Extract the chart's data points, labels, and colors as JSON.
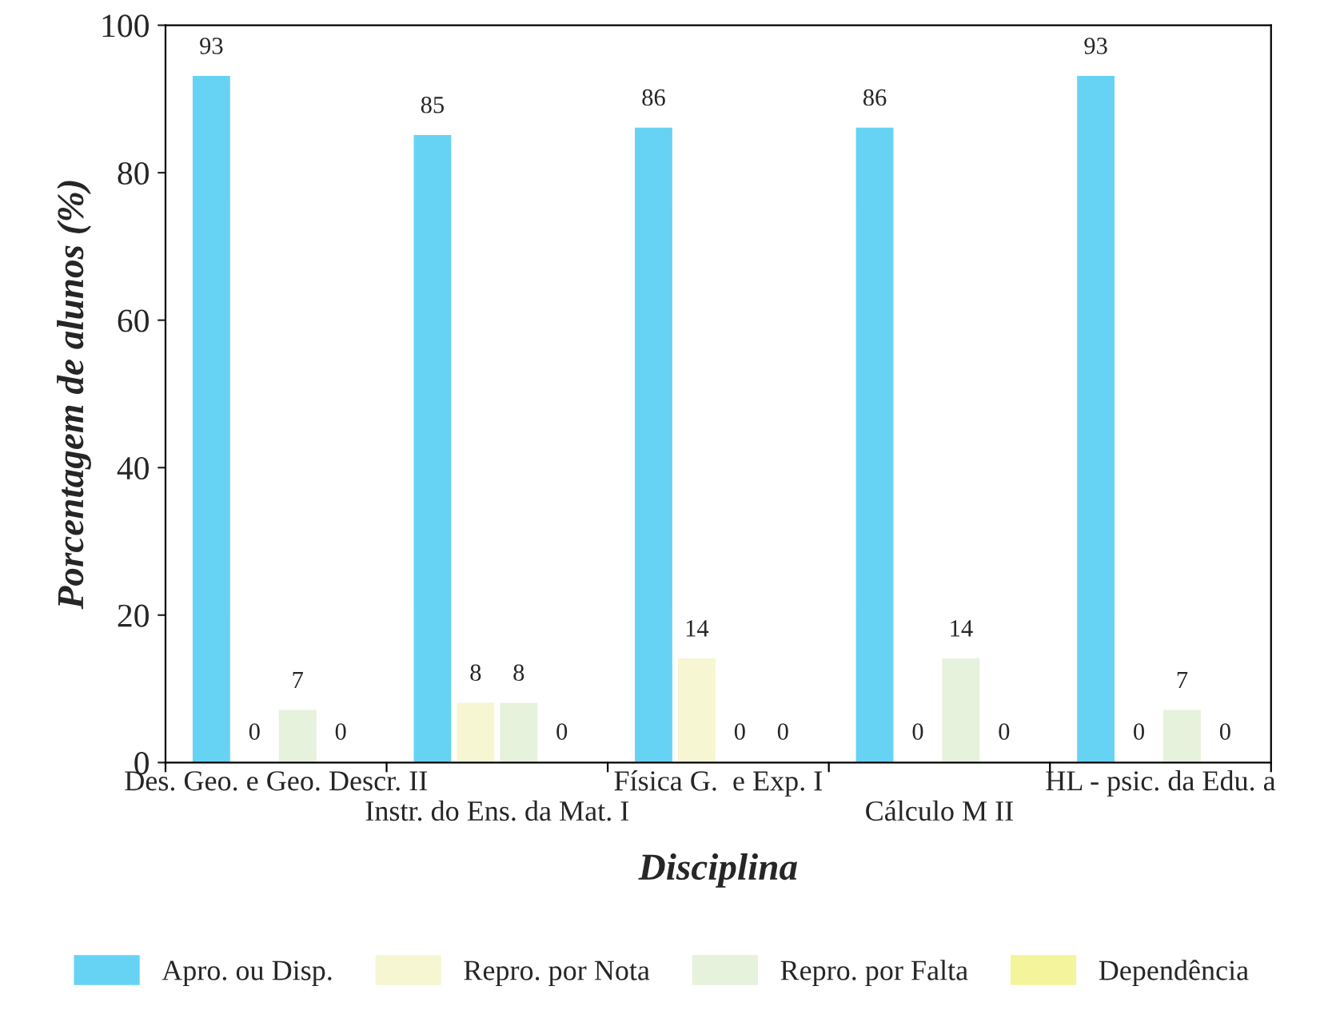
{
  "chart_data": {
    "type": "bar",
    "xlabel": "Disciplina",
    "ylabel": "Porcentagem de alunos (%)",
    "categories": [
      "Des. Geo. e Geo. Descr. II",
      "Instr. do Ens. da Mat. I",
      "Física G.  e Exp. I",
      "Cálculo M II",
      "HL - psic. da Edu. a"
    ],
    "series": [
      {
        "name": "Apro. ou Disp.",
        "color": "#66d3f5",
        "values": [
          93,
          85,
          86,
          86,
          93
        ]
      },
      {
        "name": "Repro. por Nota",
        "color": "#f6f6d2",
        "values": [
          0,
          8,
          14,
          0,
          0
        ]
      },
      {
        "name": "Repro. por Falta",
        "color": "#e6f2dc",
        "values": [
          7,
          8,
          0,
          14,
          7
        ]
      },
      {
        "name": "Dependência",
        "color": "#f4f49c",
        "values": [
          0,
          0,
          0,
          0,
          0
        ]
      }
    ],
    "ylim": [
      0,
      100
    ],
    "yticks": [
      0,
      20,
      40,
      60,
      80,
      100
    ],
    "data_labels": true,
    "grid": false,
    "legend": "bottom"
  }
}
